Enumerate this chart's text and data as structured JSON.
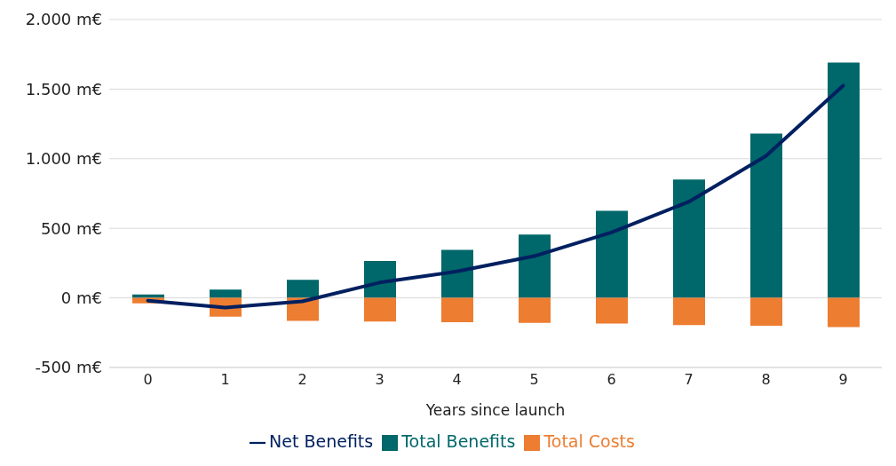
{
  "chart_data": {
    "type": "bar",
    "stacked": true,
    "xlabel": "Years since launch",
    "categories": [
      "0",
      "1",
      "2",
      "3",
      "4",
      "5",
      "6",
      "7",
      "8",
      "9"
    ],
    "series": [
      {
        "name": "Total Benefits",
        "color": "#00676a",
        "values": [
          25,
          60,
          130,
          265,
          345,
          455,
          625,
          850,
          1180,
          1690
        ]
      },
      {
        "name": "Total Costs",
        "color": "#ed7d31",
        "values": [
          -40,
          -135,
          -165,
          -170,
          -175,
          -180,
          -185,
          -195,
          -200,
          -210
        ]
      },
      {
        "name": "Net Benefits",
        "type": "line",
        "color": "#002060",
        "values": [
          -20,
          -70,
          -25,
          110,
          190,
          300,
          470,
          690,
          1020,
          1525
        ]
      }
    ],
    "ylim": [
      -500,
      2000
    ],
    "yticks": [
      {
        "value": -500,
        "label": "-500 m€"
      },
      {
        "value": 0,
        "label": "0 m€"
      },
      {
        "value": 500,
        "label": "500 m€"
      },
      {
        "value": 1000,
        "label": "1.000 m€"
      },
      {
        "value": 1500,
        "label": "1.500 m€"
      },
      {
        "value": 2000,
        "label": "2.000 m€"
      }
    ],
    "grid": "y",
    "legend": "bottom",
    "marker": "none"
  }
}
